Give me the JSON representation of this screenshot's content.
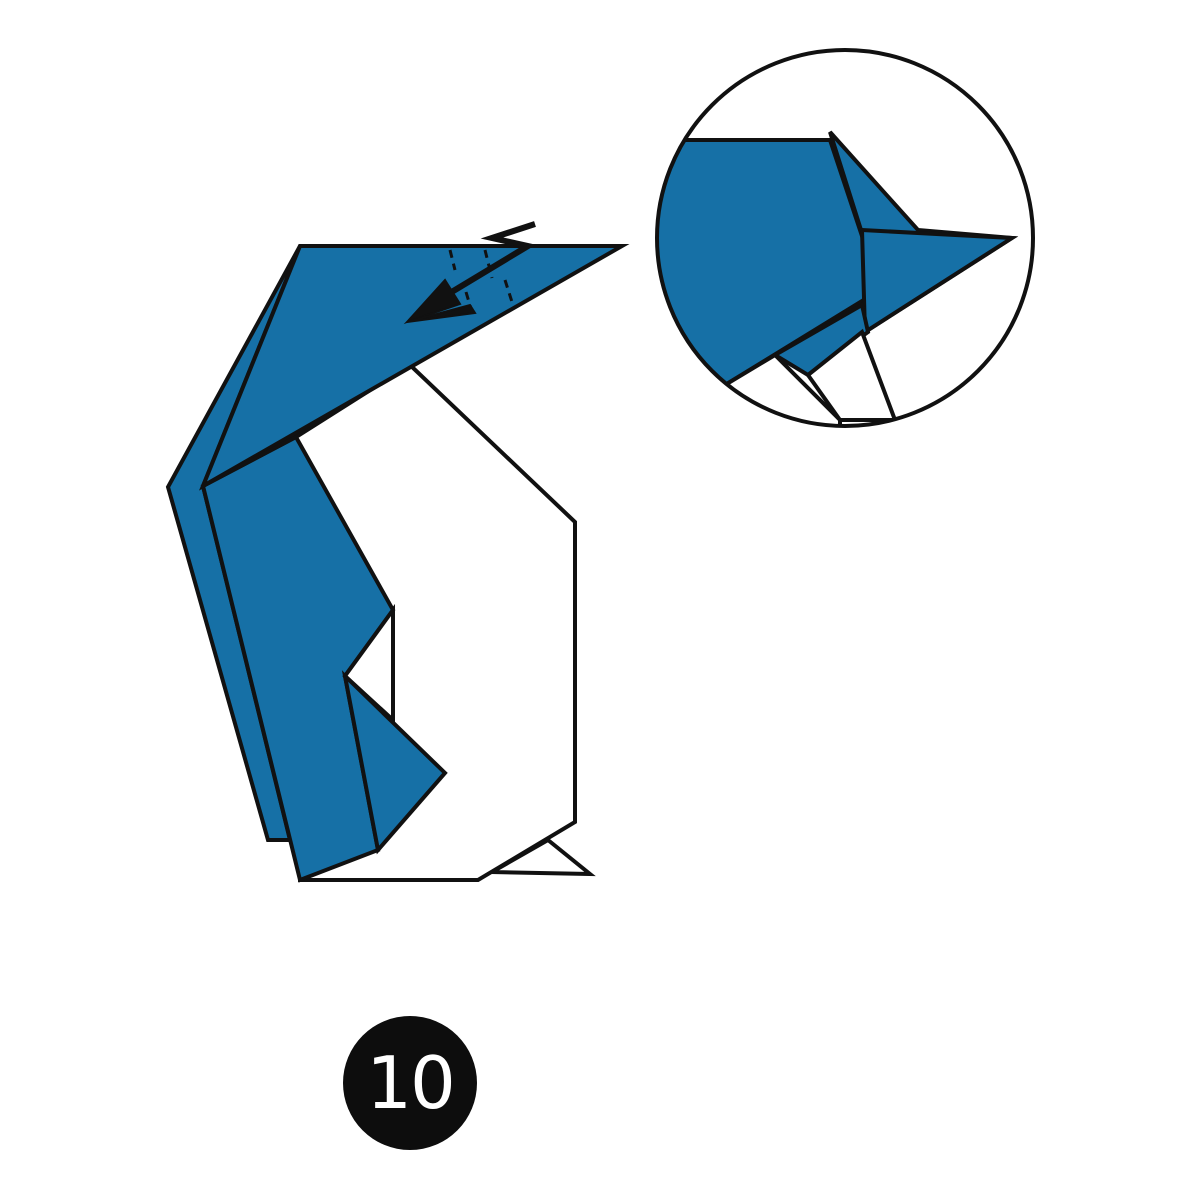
{
  "step": {
    "number": "10"
  },
  "icons": {
    "arrow": "curved-fold-arrow-icon",
    "magnifier": "detail-magnifier-circle"
  },
  "colors": {
    "paper_blue": "#1670a6",
    "paper_white": "#ffffff",
    "outline": "#111111",
    "badge": "#0d0d0d"
  }
}
